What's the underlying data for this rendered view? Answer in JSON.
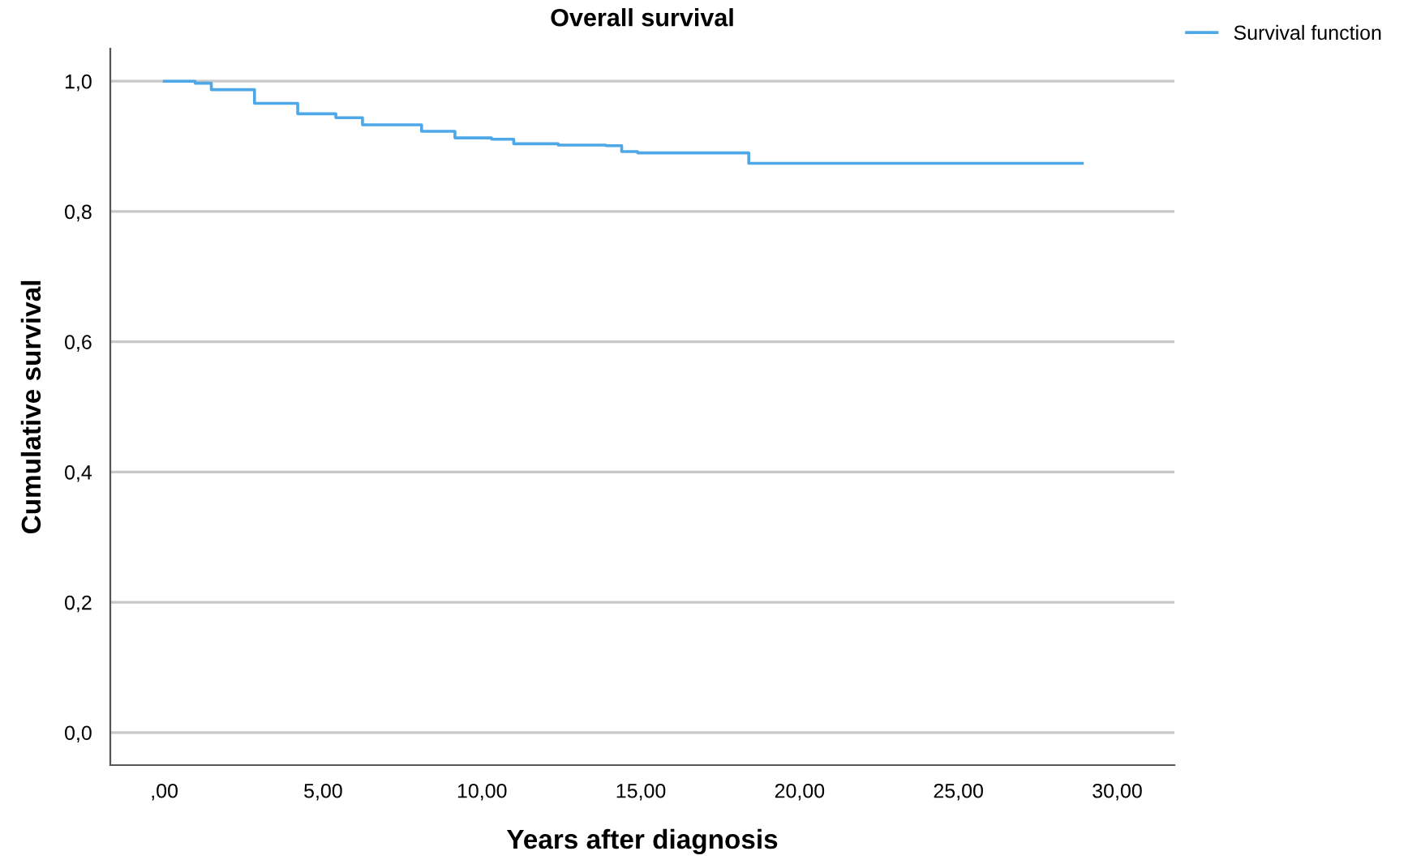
{
  "chart_data": {
    "type": "step",
    "title": "Overall survival",
    "xlabel": "Years after diagnosis",
    "ylabel": "Cumulative survival",
    "series": [
      {
        "name": "Survival function",
        "color": "#4ea8e8",
        "x": [
          0,
          0.97,
          1.48,
          2.84,
          4.2,
          5.4,
          6.24,
          8.1,
          9.15,
          10.3,
          11.0,
          12.4,
          13.9,
          14.4,
          14.9,
          18.4,
          28.9
        ],
        "values": [
          1.0,
          0.997,
          0.987,
          0.966,
          0.95,
          0.944,
          0.933,
          0.923,
          0.913,
          0.911,
          0.904,
          0.902,
          0.901,
          0.892,
          0.89,
          0.874,
          0.874
        ]
      }
    ],
    "xlim": [
      -1.7,
      31.8
    ],
    "ylim": [
      -0.05,
      1.05
    ],
    "xticks": [
      {
        "value": 0,
        "label": ",00"
      },
      {
        "value": 5,
        "label": "5,00"
      },
      {
        "value": 10,
        "label": "10,00"
      },
      {
        "value": 15,
        "label": "15,00"
      },
      {
        "value": 20,
        "label": "20,00"
      },
      {
        "value": 25,
        "label": "25,00"
      },
      {
        "value": 30,
        "label": "30,00"
      }
    ],
    "yticks": [
      {
        "value": 0,
        "label": "0,0"
      },
      {
        "value": 0.2,
        "label": "0,2"
      },
      {
        "value": 0.4,
        "label": "0,4"
      },
      {
        "value": 0.6,
        "label": "0,6"
      },
      {
        "value": 0.8,
        "label": "0,8"
      },
      {
        "value": 1.0,
        "label": "1,0"
      }
    ],
    "grid": "y",
    "legend": "top right"
  }
}
